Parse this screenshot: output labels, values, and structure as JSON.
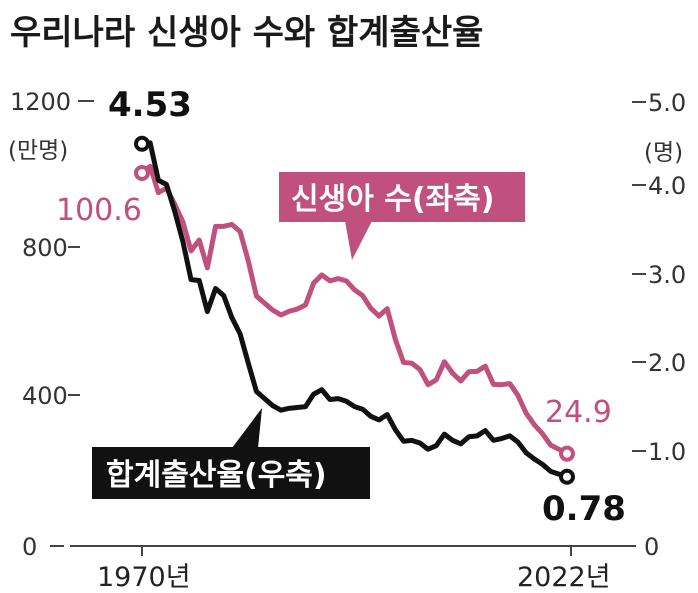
{
  "title": "우리나라 신생아 수와 합계출산율",
  "chart_data": {
    "type": "line",
    "x": [
      1970,
      1971,
      1972,
      1973,
      1974,
      1975,
      1976,
      1977,
      1978,
      1979,
      1980,
      1981,
      1982,
      1983,
      1984,
      1985,
      1986,
      1987,
      1988,
      1989,
      1990,
      1991,
      1992,
      1993,
      1994,
      1995,
      1996,
      1997,
      1998,
      1999,
      2000,
      2001,
      2002,
      2003,
      2004,
      2005,
      2006,
      2007,
      2008,
      2009,
      2010,
      2011,
      2012,
      2013,
      2014,
      2015,
      2016,
      2017,
      2018,
      2019,
      2020,
      2021,
      2022
    ],
    "x_tick_labels": [
      "1970년",
      "2022년"
    ],
    "left_axis": {
      "unit": "(만명)",
      "ticks": [
        "0",
        "400",
        "800",
        "1200"
      ],
      "range": [
        0,
        1200
      ]
    },
    "right_axis": {
      "unit": "(명)",
      "ticks": [
        "0",
        "1.0",
        "2.0",
        "3.0",
        "4.0",
        "5.0"
      ],
      "range": [
        0,
        5.0
      ]
    },
    "series": [
      {
        "name": "신생아 수(좌축)",
        "axis": "left",
        "color": "#c0507e",
        "values": [
          1006,
          1024,
          953,
          965,
          922,
          874,
          796,
          825,
          750,
          862,
          862,
          867,
          848,
          769,
          674,
          655,
          636,
          623,
          633,
          639,
          650,
          709,
          731,
          715,
          721,
          715,
          691,
          675,
          641,
          620,
          640,
          557,
          495,
          493,
          476,
          435,
          448,
          497,
          466,
          445,
          470,
          471,
          485,
          436,
          435,
          438,
          406,
          358,
          327,
          303,
          272,
          261,
          249
        ]
      },
      {
        "name": "합계출산율(우축)",
        "axis": "right",
        "color": "#111111",
        "values": [
          4.53,
          4.54,
          4.12,
          4.07,
          3.77,
          3.43,
          3.0,
          2.99,
          2.64,
          2.9,
          2.82,
          2.57,
          2.39,
          2.06,
          1.74,
          1.66,
          1.58,
          1.53,
          1.55,
          1.56,
          1.57,
          1.71,
          1.76,
          1.65,
          1.66,
          1.63,
          1.57,
          1.54,
          1.46,
          1.42,
          1.48,
          1.31,
          1.18,
          1.19,
          1.16,
          1.09,
          1.13,
          1.26,
          1.19,
          1.15,
          1.23,
          1.24,
          1.3,
          1.19,
          1.21,
          1.24,
          1.17,
          1.05,
          0.98,
          0.92,
          0.84,
          0.81,
          0.78
        ]
      }
    ],
    "labels": {
      "births_start": "100.6",
      "births_end": "24.9",
      "tfr_start": "4.53",
      "tfr_end": "0.78"
    }
  }
}
